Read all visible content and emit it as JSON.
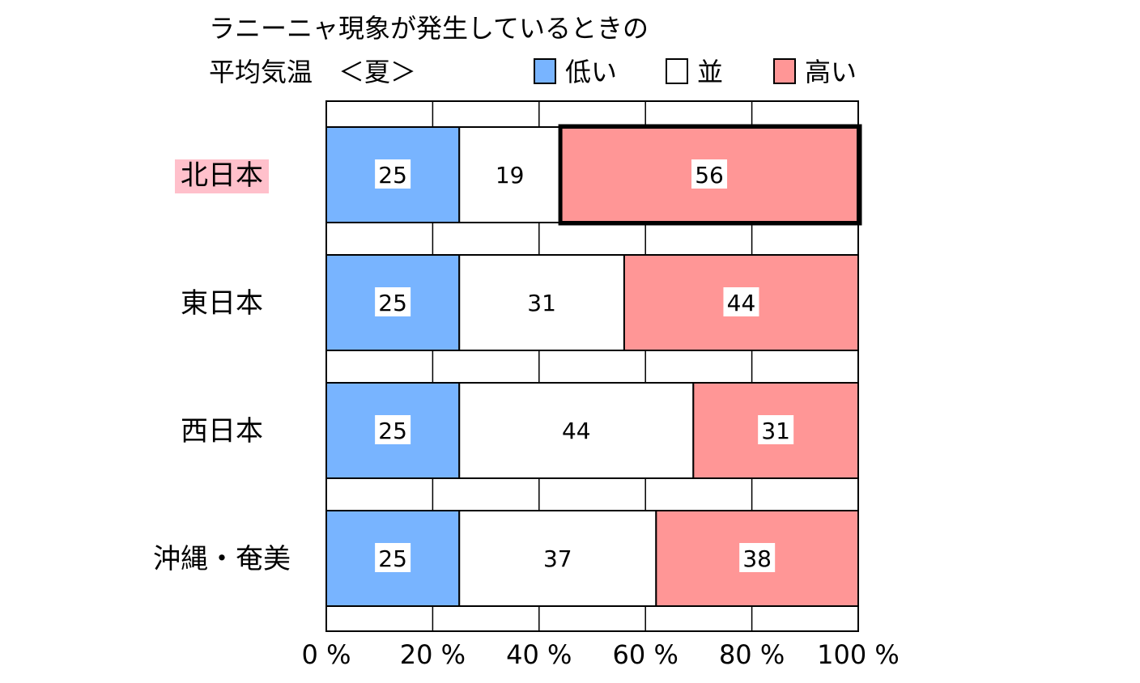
{
  "chart_data": {
    "type": "bar",
    "stacked": true,
    "orientation": "horizontal",
    "title_lines": [
      "ラニーニャ現象が発生しているときの",
      "平均気温　＜夏＞"
    ],
    "categories": [
      "北日本",
      "東日本",
      "西日本",
      "沖縄・奄美"
    ],
    "series": [
      {
        "name": "低い",
        "color": "#78b4ff",
        "values": [
          25,
          25,
          25,
          25
        ]
      },
      {
        "name": "並",
        "color": "#ffffff",
        "values": [
          19,
          31,
          44,
          37
        ]
      },
      {
        "name": "高い",
        "color": "#ff9696",
        "values": [
          56,
          44,
          31,
          38
        ]
      }
    ],
    "xticks": [
      "0 %",
      "20 %",
      "40 %",
      "60 %",
      "80 %",
      "100 %"
    ],
    "xlim": [
      0,
      100
    ],
    "grid": true,
    "legend_position": "top-right",
    "highlight": {
      "category": "北日本",
      "series": "高い",
      "label_color": "#ffc0cb"
    }
  }
}
